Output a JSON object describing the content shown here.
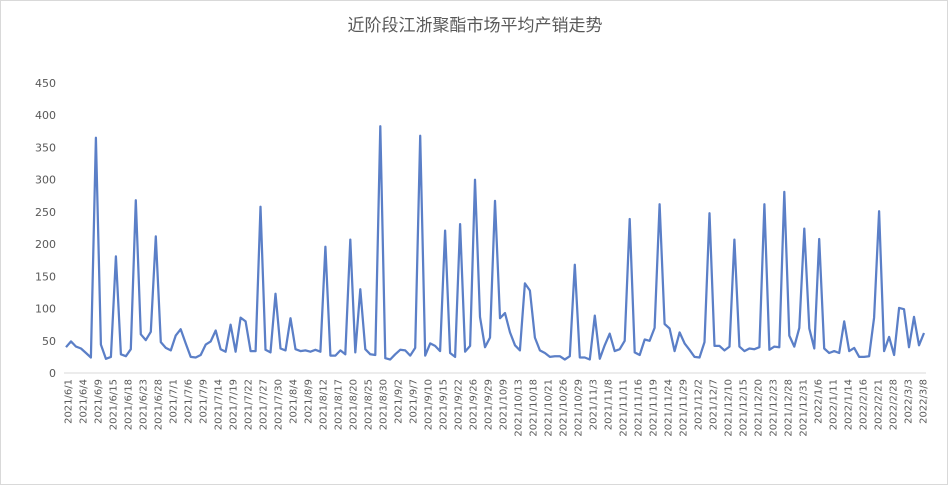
{
  "chart_data": {
    "type": "line",
    "title": "近阶段江浙聚酯市场平均产销走势",
    "xlabel": "",
    "ylabel": "",
    "ylim": [
      0,
      450
    ],
    "yticks": [
      0,
      50,
      100,
      150,
      200,
      250,
      300,
      350,
      400,
      450
    ],
    "grid": false,
    "legend": "none",
    "line_color": "#5b7fc7",
    "x_tick_labels": [
      "2021/6/1",
      "2021/6/4",
      "2021/6/9",
      "2021/6/15",
      "2021/6/18",
      "2021/6/23",
      "2021/6/28",
      "2021/7/1",
      "2021/7/6",
      "2021/7/9",
      "2021/7/14",
      "2021/7/19",
      "2021/7/22",
      "2021/7/27",
      "2021/7/30",
      "2021/8/4",
      "2021/8/9",
      "2021/8/12",
      "2021/8/17",
      "2021/8/20",
      "2021/8/25",
      "2021/8/30",
      "2021/9/2",
      "2021/9/7",
      "2021/9/10",
      "2021/9/15",
      "2021/9/22",
      "2021/9/26",
      "2021/9/29",
      "2021/10/9",
      "2021/10/13",
      "2021/10/18",
      "2021/10/21",
      "2021/10/26",
      "2021/10/29",
      "2021/11/3",
      "2021/11/8",
      "2021/11/11",
      "2021/11/16",
      "2021/11/19",
      "2021/11/24",
      "2021/11/29",
      "2021/12/2",
      "2021/12/7",
      "2021/12/10",
      "2021/12/15",
      "2021/12/20",
      "2021/12/23",
      "2021/12/28",
      "2021/12/31",
      "2022/1/6",
      "2022/1/11",
      "2022/1/14",
      "2022/2/16",
      "2022/2/21",
      "2022/2/28",
      "2022/3/3",
      "2022/3/8"
    ],
    "values": [
      40,
      49,
      41,
      38,
      31,
      24,
      365,
      44,
      22,
      25,
      181,
      29,
      26,
      37,
      268,
      60,
      51,
      64,
      212,
      48,
      39,
      35,
      58,
      68,
      46,
      25,
      24,
      28,
      44,
      49,
      66,
      37,
      33,
      75,
      33,
      86,
      80,
      34,
      34,
      258,
      36,
      32,
      123,
      38,
      35,
      85,
      37,
      34,
      35,
      33,
      36,
      33,
      196,
      27,
      27,
      35,
      29,
      207,
      32,
      130,
      37,
      29,
      28,
      383,
      23,
      21,
      29,
      36,
      35,
      27,
      39,
      368,
      27,
      46,
      42,
      34,
      221,
      31,
      25,
      231,
      33,
      42,
      300,
      87,
      40,
      55,
      267,
      85,
      93,
      63,
      43,
      35,
      139,
      128,
      55,
      35,
      31,
      25,
      26,
      26,
      21,
      26,
      168,
      24,
      24,
      21,
      89,
      22,
      43,
      61,
      34,
      37,
      50,
      239,
      32,
      28,
      52,
      50,
      70,
      262,
      76,
      69,
      34,
      63,
      46,
      36,
      25,
      24,
      48,
      248,
      42,
      42,
      35,
      41,
      207,
      41,
      34,
      38,
      37,
      40,
      262,
      36,
      41,
      40,
      281,
      58,
      41,
      70,
      224,
      69,
      38,
      208,
      38,
      31,
      34,
      31,
      80,
      34,
      39,
      25,
      25,
      26,
      86,
      251,
      34,
      56,
      28,
      101,
      99,
      40,
      87,
      43,
      62
    ]
  }
}
